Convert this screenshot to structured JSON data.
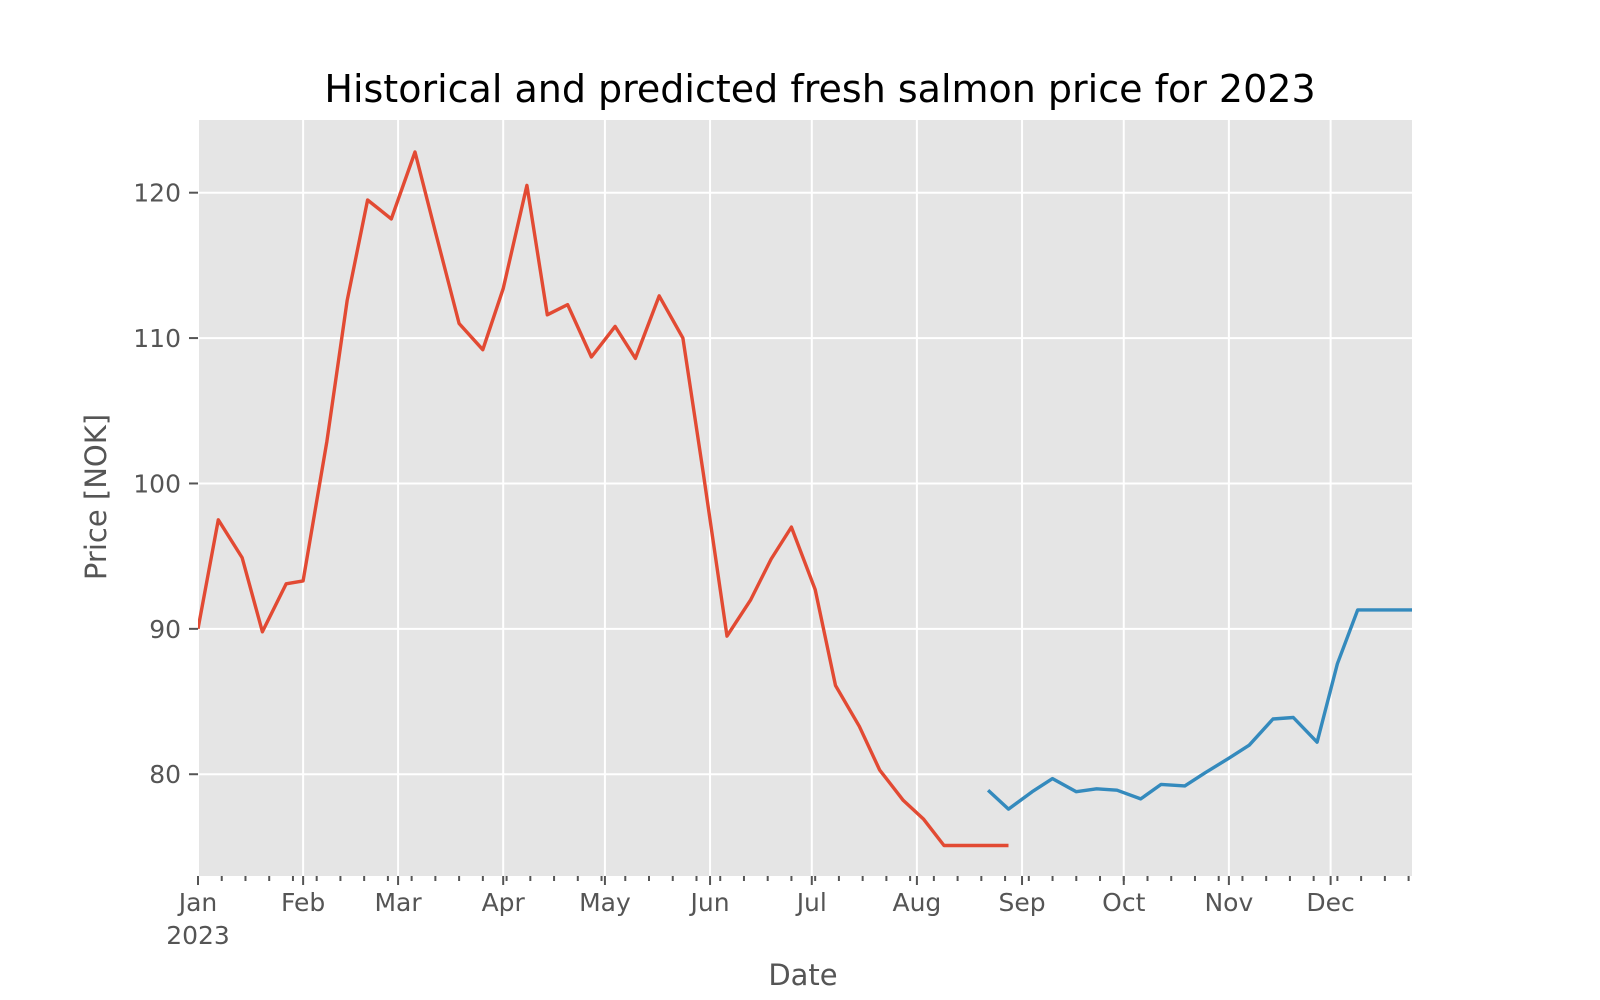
{
  "chart_data": {
    "type": "line",
    "title": "Historical and predicted fresh salmon price for 2023",
    "xlabel": "Date",
    "ylabel": "Price [NOK]",
    "xlim": [
      "2023-01-01",
      "2023-12-25"
    ],
    "ylim": [
      73,
      125
    ],
    "grid": true,
    "legend": "none",
    "background_color": "#e5e5e5",
    "x_ticks": [
      {
        "date": "2023-01-01",
        "label": "Jan",
        "label2": "2023"
      },
      {
        "date": "2023-02-01",
        "label": "Feb"
      },
      {
        "date": "2023-03-01",
        "label": "Mar"
      },
      {
        "date": "2023-04-01",
        "label": "Apr"
      },
      {
        "date": "2023-05-01",
        "label": "May"
      },
      {
        "date": "2023-06-01",
        "label": "Jun"
      },
      {
        "date": "2023-07-01",
        "label": "Jul"
      },
      {
        "date": "2023-08-01",
        "label": "Aug"
      },
      {
        "date": "2023-09-01",
        "label": "Sep"
      },
      {
        "date": "2023-10-01",
        "label": "Oct"
      },
      {
        "date": "2023-11-01",
        "label": "Nov"
      },
      {
        "date": "2023-12-01",
        "label": "Dec"
      }
    ],
    "minor_ticks": [
      "2023-01-08",
      "2023-01-15",
      "2023-01-22",
      "2023-01-29",
      "2023-02-05",
      "2023-02-12",
      "2023-02-19",
      "2023-02-26",
      "2023-03-05",
      "2023-03-12",
      "2023-03-19",
      "2023-03-26",
      "2023-04-02",
      "2023-04-09",
      "2023-04-16",
      "2023-04-23",
      "2023-04-30",
      "2023-05-07",
      "2023-05-14",
      "2023-05-21",
      "2023-05-28",
      "2023-06-04",
      "2023-06-11",
      "2023-06-18",
      "2023-06-25",
      "2023-07-02",
      "2023-07-09",
      "2023-07-16",
      "2023-07-23",
      "2023-07-30",
      "2023-08-06",
      "2023-08-13",
      "2023-08-20",
      "2023-08-27",
      "2023-09-03",
      "2023-09-10",
      "2023-09-17",
      "2023-09-24",
      "2023-10-01",
      "2023-10-08",
      "2023-10-15",
      "2023-10-22",
      "2023-10-29",
      "2023-11-05",
      "2023-11-12",
      "2023-11-19",
      "2023-11-26",
      "2023-12-03",
      "2023-12-10",
      "2023-12-17",
      "2023-12-24"
    ],
    "y_ticks": [
      80,
      90,
      100,
      110,
      120
    ],
    "series": [
      {
        "color": "#e24a33",
        "x": [
          "2023-01-01",
          "2023-01-07",
          "2023-01-14",
          "2023-01-20",
          "2023-01-27",
          "2023-02-01",
          "2023-02-08",
          "2023-02-14",
          "2023-02-20",
          "2023-02-27",
          "2023-03-06",
          "2023-03-12",
          "2023-03-19",
          "2023-03-26",
          "2023-04-01",
          "2023-04-08",
          "2023-04-14",
          "2023-04-20",
          "2023-04-27",
          "2023-05-04",
          "2023-05-10",
          "2023-05-17",
          "2023-05-24",
          "2023-05-30",
          "2023-06-06",
          "2023-06-13",
          "2023-06-19",
          "2023-06-25",
          "2023-07-02",
          "2023-07-08",
          "2023-07-15",
          "2023-07-21",
          "2023-07-28",
          "2023-08-03",
          "2023-08-09",
          "2023-08-16",
          "2023-08-22",
          "2023-08-28"
        ],
        "y": [
          90.0,
          97.5,
          94.9,
          89.8,
          93.1,
          93.3,
          102.9,
          112.6,
          119.5,
          118.2,
          122.8,
          117.3,
          111.0,
          109.2,
          113.4,
          120.5,
          111.6,
          112.3,
          108.7,
          110.8,
          108.6,
          112.9,
          110.0,
          100.7,
          89.5,
          92.0,
          94.8,
          97.0,
          92.7,
          86.1,
          83.3,
          80.3,
          78.2,
          76.9,
          75.1,
          75.1,
          75.1,
          75.1
        ]
      },
      {
        "color": "#348abd",
        "x": [
          "2023-08-22",
          "2023-08-28",
          "2023-09-04",
          "2023-09-10",
          "2023-09-17",
          "2023-09-23",
          "2023-09-29",
          "2023-10-06",
          "2023-10-12",
          "2023-10-19",
          "2023-10-25",
          "2023-11-01",
          "2023-11-07",
          "2023-11-14",
          "2023-11-20",
          "2023-11-27",
          "2023-12-03",
          "2023-12-09",
          "2023-12-16",
          "2023-12-25"
        ],
        "y": [
          78.9,
          77.6,
          78.8,
          79.7,
          78.8,
          79.0,
          78.9,
          78.3,
          79.3,
          79.2,
          80.1,
          81.1,
          82.0,
          83.8,
          83.9,
          82.2,
          87.6,
          91.3,
          91.3,
          91.3
        ]
      }
    ]
  }
}
